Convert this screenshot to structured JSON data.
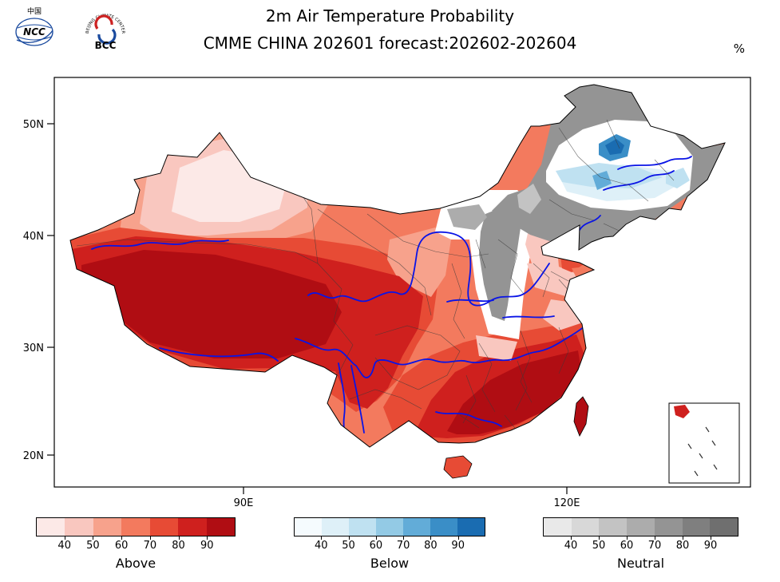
{
  "header": {
    "title_line1": "2m Air Temperature Probability",
    "title_line2": "CMME CHINA 202601 forecast:202602-202604",
    "unit_label": "%",
    "logo_ncc": {
      "top_text": "中国",
      "text": "NCC"
    },
    "logo_bcc": {
      "ring_text": "BEIJING CLIMATE CENTER",
      "text": "BCC"
    }
  },
  "map": {
    "lat_ticks": [
      "50N",
      "40N",
      "30N",
      "20N"
    ],
    "lon_ticks": [
      "90E",
      "120E"
    ],
    "river_color": "#0a14e6",
    "outline_color": "#000000",
    "province_line_color": "#3a3a3a"
  },
  "palettes": {
    "above": [
      "#fce9e7",
      "#f9c7bf",
      "#f7a28c",
      "#f37a5e",
      "#e74b35",
      "#cf201e",
      "#b00d13"
    ],
    "below": [
      "#f5fbfe",
      "#def0f8",
      "#bfe1f1",
      "#93cae5",
      "#62acd8",
      "#3a8ec7",
      "#1a6cb1"
    ],
    "neutral": [
      "#e9e9e9",
      "#d8d8d8",
      "#c3c3c3",
      "#acacac",
      "#949494",
      "#7f7f7f",
      "#6f6f6f"
    ],
    "buffer": [
      "#ffffff"
    ]
  },
  "colorbars": [
    {
      "label": "Above",
      "palette_key": "above",
      "ticks": [
        "40",
        "50",
        "60",
        "70",
        "80",
        "90"
      ]
    },
    {
      "label": "Below",
      "palette_key": "below",
      "ticks": [
        "40",
        "50",
        "60",
        "70",
        "80",
        "90"
      ]
    },
    {
      "label": "Neutral",
      "palette_key": "neutral",
      "ticks": [
        "40",
        "50",
        "60",
        "70",
        "80",
        "90"
      ]
    }
  ],
  "chart_data": {
    "type": "heatmap",
    "title": "2m Air Temperature Probability",
    "subtitle": "CMME CHINA 202601 forecast:202602-202604",
    "unit": "%",
    "legend_categories": [
      "Above",
      "Below",
      "Neutral"
    ],
    "legend_ticks": [
      40,
      50,
      60,
      70,
      80,
      90
    ],
    "axis": {
      "lat_ticks": [
        "50N",
        "40N",
        "30N",
        "20N"
      ],
      "lon_ticks": [
        "90E",
        "120E"
      ]
    }
  }
}
